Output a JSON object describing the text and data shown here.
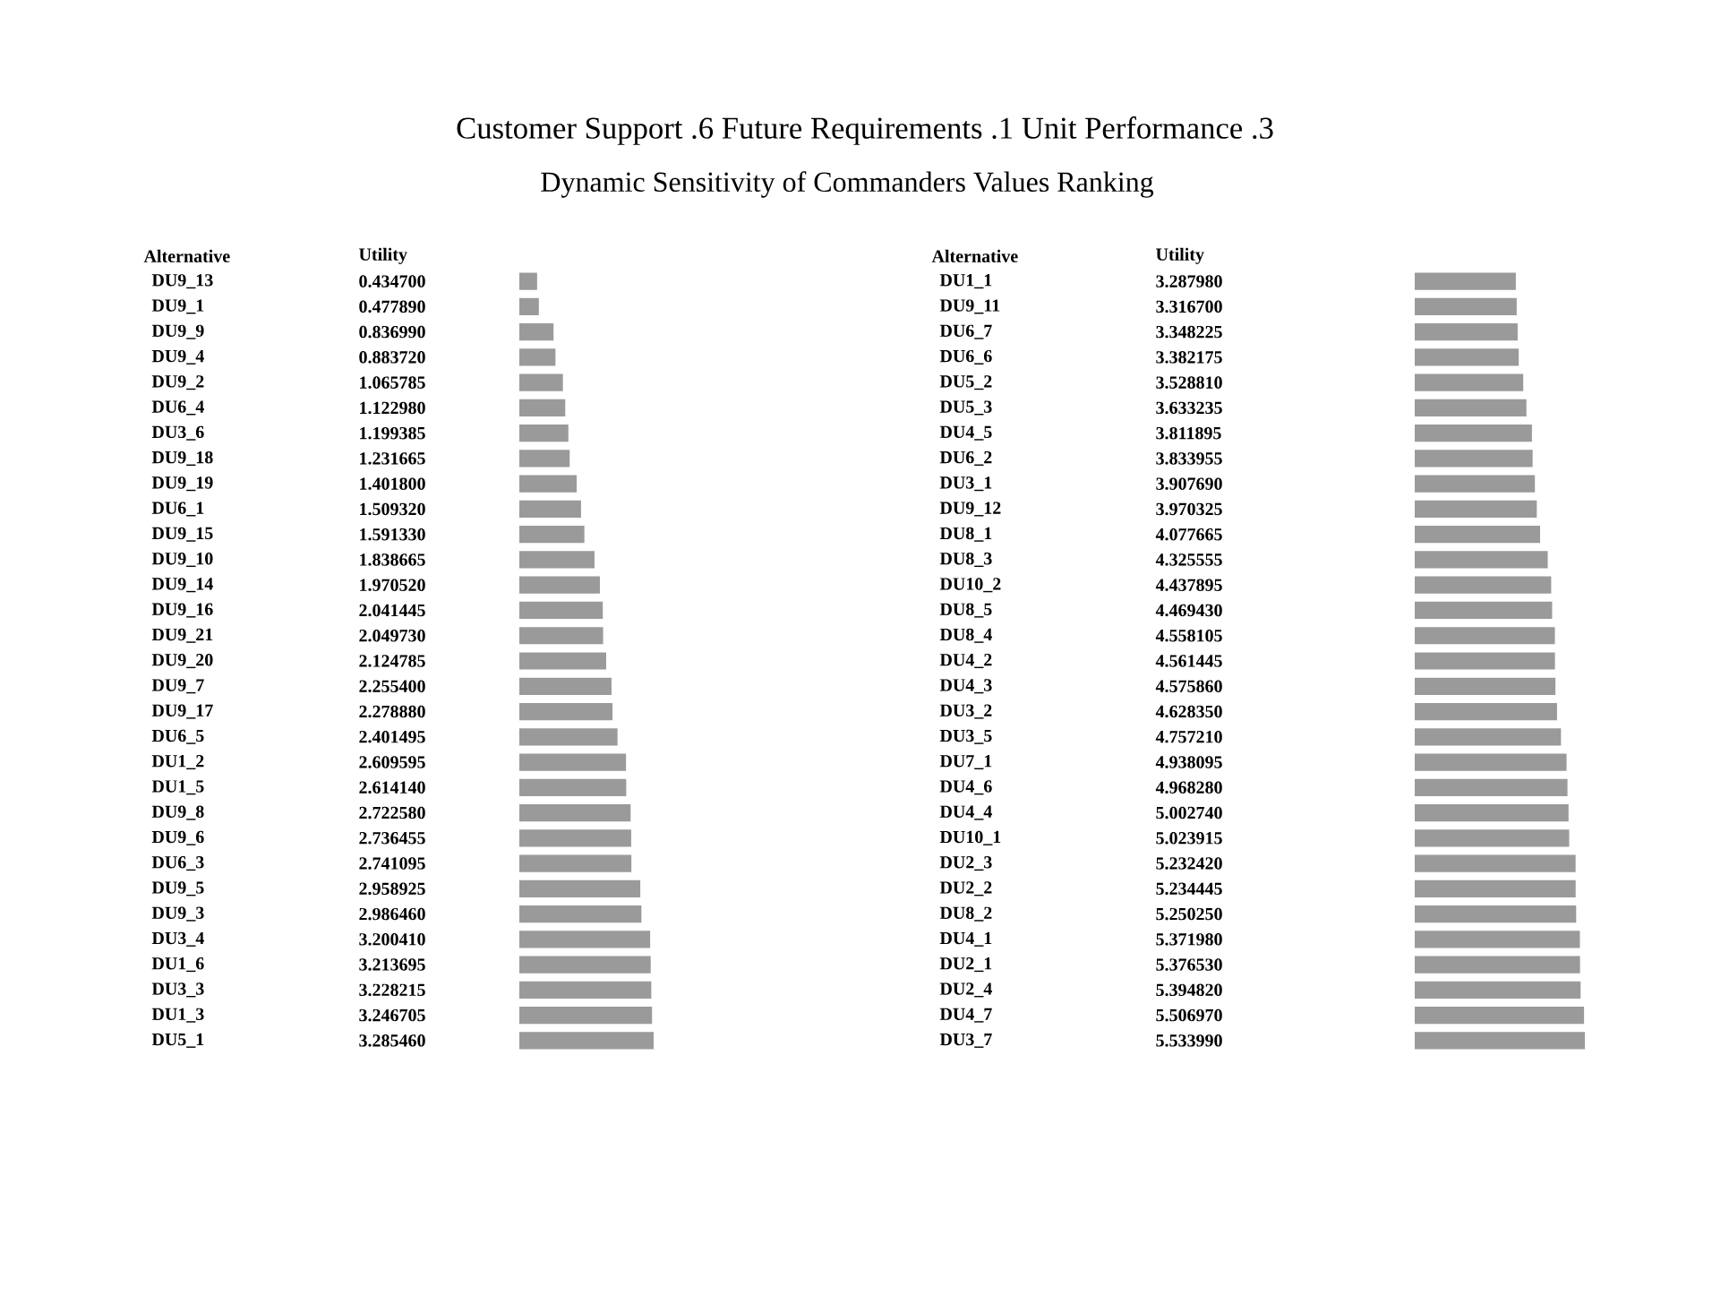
{
  "chart_data": [
    {
      "type": "bar",
      "orientation": "horizontal",
      "title": "Customer Support .6    Future Requirements .1    Unit Performance .3",
      "subtitle": "Dynamic Sensitivity of Commanders Values Ranking",
      "ylabel": "Alternative",
      "xlabel": "Utility",
      "color": "#9a9a9a",
      "tick_labels": "y",
      "categories": [
        "DU9_13",
        "DU9_1",
        "DU9_9",
        "DU9_4",
        "DU9_2",
        "DU6_4",
        "DU3_6",
        "DU9_18",
        "DU9_19",
        "DU6_1",
        "DU9_15",
        "DU9_10",
        "DU9_14",
        "DU9_16",
        "DU9_21",
        "DU9_20",
        "DU9_7",
        "DU9_17",
        "DU6_5",
        "DU1_2",
        "DU1_5",
        "DU9_8",
        "DU9_6",
        "DU6_3",
        "DU9_5",
        "DU9_3",
        "DU3_4",
        "DU1_6",
        "DU3_3",
        "DU1_3",
        "DU5_1"
      ],
      "values": [
        0.4347,
        0.47789,
        0.83699,
        0.88372,
        1.065785,
        1.12298,
        1.199385,
        1.231665,
        1.4018,
        1.50932,
        1.59133,
        1.838665,
        1.97052,
        2.041445,
        2.04973,
        2.124785,
        2.2554,
        2.27888,
        2.401495,
        2.609595,
        2.61414,
        2.72258,
        2.736455,
        2.741095,
        2.958925,
        2.98646,
        3.20041,
        3.213695,
        3.228215,
        3.246705,
        3.28546
      ],
      "value_labels": [
        "0.434700",
        "0.477890",
        "0.836990",
        "0.883720",
        "1.065785",
        "1.122980",
        "1.199385",
        "1.231665",
        "1.401800",
        "1.509320",
        "1.591330",
        "1.838665",
        "1.970520",
        "2.041445",
        "2.049730",
        "2.124785",
        "2.255400",
        "2.278880",
        "2.401495",
        "2.609595",
        "2.614140",
        "2.722580",
        "2.736455",
        "2.741095",
        "2.958925",
        "2.986460",
        "3.200410",
        "3.213695",
        "3.228215",
        "3.246705",
        "3.285460"
      ]
    },
    {
      "type": "bar",
      "orientation": "horizontal",
      "ylabel": "Alternative",
      "xlabel": "Utility",
      "color": "#9a9a9a",
      "tick_labels": "y",
      "categories": [
        "DU1_1",
        "DU9_11",
        "DU6_7",
        "DU6_6",
        "DU5_2",
        "DU5_3",
        "DU4_5",
        "DU6_2",
        "DU3_1",
        "DU9_12",
        "DU8_1",
        "DU8_3",
        "DU10_2",
        "DU8_5",
        "DU8_4",
        "DU4_2",
        "DU4_3",
        "DU3_2",
        "DU3_5",
        "DU7_1",
        "DU4_6",
        "DU4_4",
        "DU10_1",
        "DU2_3",
        "DU2_2",
        "DU8_2",
        "DU4_1",
        "DU2_1",
        "DU2_4",
        "DU4_7",
        "DU3_7"
      ],
      "values": [
        3.28798,
        3.3167,
        3.348225,
        3.382175,
        3.52881,
        3.633235,
        3.811895,
        3.833955,
        3.90769,
        3.970325,
        4.077665,
        4.325555,
        4.437895,
        4.46943,
        4.558105,
        4.561445,
        4.57586,
        4.62835,
        4.75721,
        4.938095,
        4.96828,
        5.00274,
        5.023915,
        5.23242,
        5.234445,
        5.25025,
        5.37198,
        5.37653,
        5.39482,
        5.50697,
        5.53399
      ],
      "value_labels": [
        "3.287980",
        "3.316700",
        "3.348225",
        "3.382175",
        "3.528810",
        "3.633235",
        "3.811895",
        "3.833955",
        "3.907690",
        "3.970325",
        "4.077665",
        "4.325555",
        "4.437895",
        "4.469430",
        "4.558105",
        "4.561445",
        "4.575860",
        "4.628350",
        "4.757210",
        "4.938095",
        "4.968280",
        "5.002740",
        "5.023915",
        "5.232420",
        "5.234445",
        "5.250250",
        "5.371980",
        "5.376530",
        "5.394820",
        "5.506970",
        "5.533990"
      ]
    }
  ]
}
